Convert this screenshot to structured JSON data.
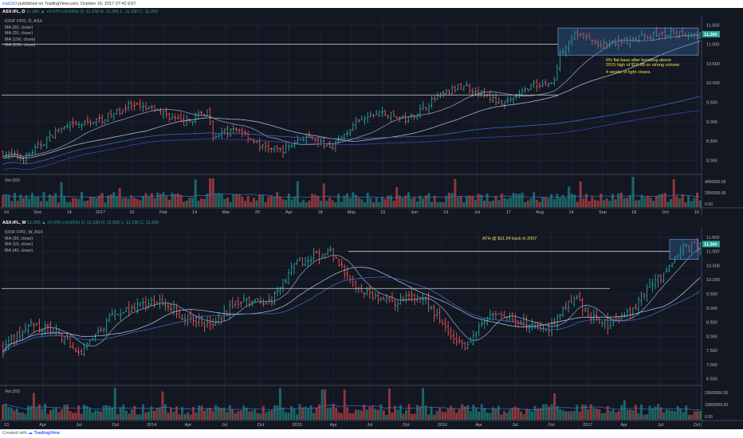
{
  "header": {
    "user": "tradi3r3",
    "published_text": " published on TradingView.com, October 16, 2017 07:42 EST"
  },
  "footer": {
    "created_with": "Created with",
    "brand": "TradingView"
  },
  "daily_panel": {
    "symbol": "ASX:IFL, D",
    "change_text": "11.260 ▲ +0.070 (+0.63%) O: 11.230 H: 11.300 L: 11.230 C: 11.260",
    "title": "IOOF FPO, D, ASX",
    "ma_legend": [
      "MA (50, close)",
      "MA (20, close)",
      "MA (150, close)",
      "MA (200, close)"
    ],
    "vol_label": "Vol (50)"
  },
  "weekly_panel": {
    "symbol": "ASX:IFL, W",
    "change_text": "11.260 ▲ +0.070 (+0.63%) O: 11.230 H: 11.300 L: 11.230 C: 11.260",
    "title": "IOOF FPO, W, ASX",
    "ma_legend": [
      "MA (30, close)",
      "MA (10, close)",
      "MA (40, close)"
    ],
    "vol_label": "Vol (50)"
  },
  "colors": {
    "background": "#131722",
    "up": "#26a69a",
    "down": "#ef5350",
    "ma_light": "#b2c8e8",
    "ma_blue": "#3f6fd1",
    "ma_navy": "#4b3fbf",
    "annotation": "#f2e14c",
    "box_fill": "#3a6ea5",
    "grid": "#1e2230"
  },
  "chart_data": [
    {
      "type": "candlestick",
      "title": "IOOF FPO, D, ASX",
      "x_ticks": [
        "14",
        "Dec",
        "14",
        "2017",
        "16",
        "Feb",
        "14",
        "Mar",
        "20",
        "Apr",
        "18",
        "May",
        "15",
        "Jun",
        "19",
        "Jul",
        "17",
        "Aug",
        "14",
        "Sep",
        "18",
        "Oct",
        "16"
      ],
      "y_ticks": [
        8.0,
        8.5,
        9.0,
        9.5,
        10.0,
        10.5,
        11.0,
        11.5
      ],
      "ylim": [
        7.7,
        11.65
      ],
      "last_price_label": "11.260",
      "horizontal_levels": [
        11.0,
        9.69
      ],
      "annotations": [
        "6% flat base after breaking above",
        "2015 high of $10.98 on strong volume.",
        "4 weeks of tight closes."
      ],
      "highlight_box": {
        "y_range": [
          10.72,
          11.42
        ]
      },
      "volume_ticks": [
        "4000000.00",
        "2000000.00",
        "0.00"
      ],
      "key_points": [
        {
          "pos": 0.0,
          "price": 8.18
        },
        {
          "pos": 0.03,
          "price": 8.05
        },
        {
          "pos": 0.08,
          "price": 8.8
        },
        {
          "pos": 0.14,
          "price": 9.05
        },
        {
          "pos": 0.18,
          "price": 9.4
        },
        {
          "pos": 0.22,
          "price": 9.3
        },
        {
          "pos": 0.26,
          "price": 8.95
        },
        {
          "pos": 0.295,
          "price": 9.3
        },
        {
          "pos": 0.3,
          "price": 8.65
        },
        {
          "pos": 0.34,
          "price": 8.8
        },
        {
          "pos": 0.37,
          "price": 8.35
        },
        {
          "pos": 0.4,
          "price": 8.25
        },
        {
          "pos": 0.43,
          "price": 8.6
        },
        {
          "pos": 0.47,
          "price": 8.35
        },
        {
          "pos": 0.51,
          "price": 9.0
        },
        {
          "pos": 0.54,
          "price": 9.25
        },
        {
          "pos": 0.58,
          "price": 9.05
        },
        {
          "pos": 0.62,
          "price": 9.6
        },
        {
          "pos": 0.66,
          "price": 9.95
        },
        {
          "pos": 0.7,
          "price": 9.6
        },
        {
          "pos": 0.72,
          "price": 9.45
        },
        {
          "pos": 0.76,
          "price": 9.95
        },
        {
          "pos": 0.79,
          "price": 10.0
        },
        {
          "pos": 0.8,
          "price": 10.8
        },
        {
          "pos": 0.82,
          "price": 11.3
        },
        {
          "pos": 0.86,
          "price": 10.95
        },
        {
          "pos": 0.9,
          "price": 11.15
        },
        {
          "pos": 0.94,
          "price": 11.25
        },
        {
          "pos": 1.0,
          "price": 11.26
        }
      ]
    },
    {
      "type": "candlestick",
      "title": "IOOF FPO, W, ASX",
      "x_ticks": [
        "13",
        "Apr",
        "Jul",
        "Oct",
        "2014",
        "Apr",
        "Jul",
        "Oct",
        "2015",
        "Apr",
        "Jul",
        "Oct",
        "2016",
        "Apr",
        "Jul",
        "Oct",
        "2017",
        "Apr",
        "Jul",
        "Oct"
      ],
      "y_ticks": [
        6.5,
        7.0,
        7.5,
        8.0,
        8.5,
        9.0,
        9.5,
        10.0,
        10.5,
        11.0,
        11.5
      ],
      "ylim": [
        6.35,
        11.75
      ],
      "last_price_label": "11.260",
      "horizontal_levels": [
        11.0,
        9.69
      ],
      "annotations": [
        "ATH @ $11.94 back in 2007"
      ],
      "highlight_box": {
        "y_range": [
          10.72,
          11.42
        ]
      },
      "volume_ticks": [
        "20000000.00",
        "10000000.00",
        "0.00"
      ],
      "key_points": [
        {
          "pos": 0.0,
          "price": 7.6
        },
        {
          "pos": 0.04,
          "price": 8.4
        },
        {
          "pos": 0.08,
          "price": 8.1
        },
        {
          "pos": 0.11,
          "price": 7.35
        },
        {
          "pos": 0.16,
          "price": 8.8
        },
        {
          "pos": 0.22,
          "price": 9.3
        },
        {
          "pos": 0.26,
          "price": 8.7
        },
        {
          "pos": 0.3,
          "price": 8.4
        },
        {
          "pos": 0.34,
          "price": 9.3
        },
        {
          "pos": 0.38,
          "price": 9.1
        },
        {
          "pos": 0.42,
          "price": 10.6
        },
        {
          "pos": 0.47,
          "price": 10.95
        },
        {
          "pos": 0.51,
          "price": 9.6
        },
        {
          "pos": 0.56,
          "price": 9.2
        },
        {
          "pos": 0.6,
          "price": 9.5
        },
        {
          "pos": 0.63,
          "price": 8.4
        },
        {
          "pos": 0.66,
          "price": 7.6
        },
        {
          "pos": 0.7,
          "price": 8.8
        },
        {
          "pos": 0.74,
          "price": 8.6
        },
        {
          "pos": 0.78,
          "price": 8.2
        },
        {
          "pos": 0.82,
          "price": 9.4
        },
        {
          "pos": 0.84,
          "price": 8.75
        },
        {
          "pos": 0.87,
          "price": 8.4
        },
        {
          "pos": 0.9,
          "price": 8.8
        },
        {
          "pos": 0.93,
          "price": 9.9
        },
        {
          "pos": 0.95,
          "price": 10.2
        },
        {
          "pos": 0.97,
          "price": 11.05
        },
        {
          "pos": 1.0,
          "price": 11.26
        }
      ]
    }
  ]
}
